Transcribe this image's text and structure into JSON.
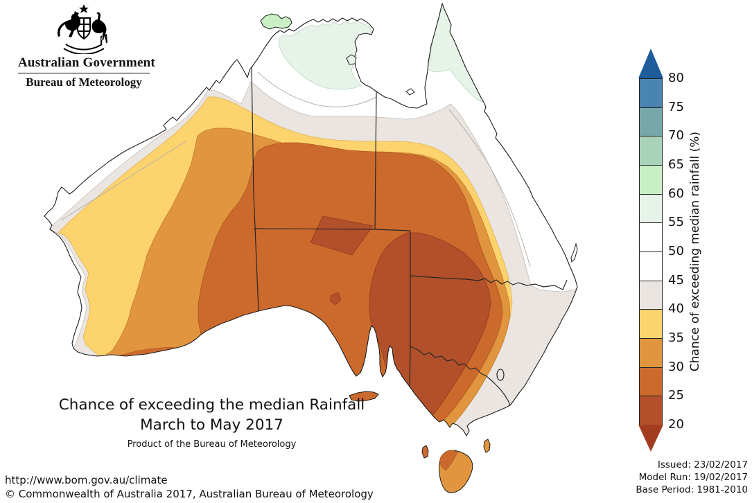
{
  "logo": {
    "line1": "Australian Government",
    "line2": "Bureau of Meteorology"
  },
  "title": {
    "line1": "Chance of exceeding the median Rainfall",
    "line2": "March to May 2017",
    "line3": "Product of the Bureau of Meteorology"
  },
  "footer": {
    "url": "http://www.bom.gov.au/climate",
    "copyright": "© Commonwealth of Australia 2017, Australian Bureau of Meteorology"
  },
  "issue_info": {
    "issued": "Issued: 23/02/2017",
    "model_run": "Model Run: 19/02/2017",
    "base_period": "Base Period: 1981-2010"
  },
  "legend": {
    "label": "Chance of exceeding median rainfall (%)",
    "ticks": [
      "80",
      "75",
      "70",
      "65",
      "60",
      "55",
      "50",
      "45",
      "40",
      "35",
      "30",
      "25",
      "20"
    ],
    "segment_labels": [
      "75-80",
      "70-75",
      "65-70",
      "60-65",
      "55-60",
      "50-55",
      "45-50",
      "40-45",
      "35-40",
      "30-35",
      "25-30",
      "20-25"
    ],
    "segment_colors": [
      "#4a84b0",
      "#76a8ab",
      "#a9d3b8",
      "#c9f0c5",
      "#e7f2e8",
      "#ffffff",
      "#ffffff",
      "#eae5e1",
      "#fdd36d",
      "#e0953e",
      "#cc6a2d",
      "#b1502a"
    ],
    "arrow_top_color": "#1f5c9c",
    "arrow_bottom_color": "#a33d22"
  },
  "map": {
    "region": "Australia",
    "band_colors": {
      "20-25": "#b1502a",
      "25-30": "#cc6a2d",
      "30-35": "#e0953e",
      "35-40": "#fdd36d",
      "40-45": "#eae5e1",
      "45-55": "#ffffff",
      "55-60": "#e7f2e8",
      "60-65": "#c9f0c5"
    },
    "features": [
      "coastline",
      "state-borders",
      "act-boundary",
      "tasmania",
      "contour-bands"
    ]
  }
}
